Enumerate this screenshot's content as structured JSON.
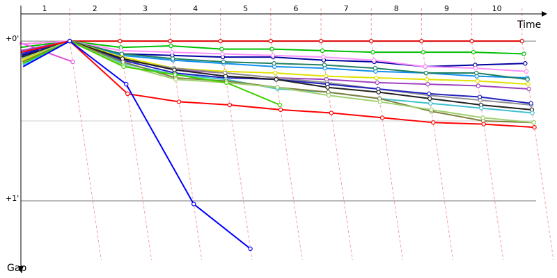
{
  "chart_data": {
    "type": "line",
    "x_label": "Time",
    "y_label": "Gap",
    "x": [
      0,
      1,
      2,
      3,
      4,
      5,
      6,
      7,
      8,
      9,
      10
    ],
    "xlim": [
      0,
      10.35
    ],
    "xticks": [
      1,
      2,
      3,
      4,
      5,
      6,
      7,
      8,
      9,
      10
    ],
    "ylim": [
      -0.17,
      1.37
    ],
    "yticks": [
      {
        "value": 0,
        "label": "+0'"
      },
      {
        "value": 1,
        "label": "+1'"
      }
    ],
    "yminor": [
      0.5
    ],
    "series": [
      {
        "color": "#e00000",
        "values": [
          0.02,
          0,
          0,
          0,
          0,
          0,
          0,
          0,
          0,
          0,
          0
        ]
      },
      {
        "color": "#00c000",
        "values": [
          0.04,
          0,
          0.04,
          0.03,
          0.05,
          0.05,
          0.06,
          0.07,
          0.07,
          0.07,
          0.08
        ]
      },
      {
        "color": "#0000a0",
        "values": [
          0.09,
          0,
          0.08,
          0.09,
          0.1,
          0.1,
          0.12,
          0.13,
          0.16,
          0.15,
          0.14
        ]
      },
      {
        "color": "#e050e0",
        "values": [
          0.01,
          0.13,
          null,
          null,
          null,
          null,
          null,
          null,
          null,
          null,
          null
        ]
      },
      {
        "color": "#ff90ff",
        "values": [
          0.02,
          0,
          0.06,
          0.07,
          0.08,
          0.09,
          0.1,
          0.12,
          0.16,
          0.17,
          0.19
        ]
      },
      {
        "color": "#1090f0",
        "values": [
          0.11,
          0,
          0.09,
          0.12,
          0.14,
          0.16,
          0.17,
          0.19,
          0.2,
          0.22,
          0.23
        ]
      },
      {
        "color": "#208060",
        "values": [
          0.1,
          0,
          0.08,
          0.11,
          0.13,
          0.14,
          0.15,
          0.17,
          0.2,
          0.2,
          0.24
        ]
      },
      {
        "color": "#e0e000",
        "values": [
          0.12,
          0,
          0.1,
          0.17,
          0.19,
          0.2,
          0.22,
          0.23,
          0.24,
          0.25,
          0.27
        ]
      },
      {
        "color": "#a040c0",
        "values": [
          0.06,
          0,
          0.11,
          0.18,
          0.2,
          0.23,
          0.24,
          0.26,
          0.27,
          0.28,
          0.3
        ]
      },
      {
        "color": "#909090",
        "values": [
          0.07,
          0,
          0.12,
          0.17,
          0.2,
          0.23,
          0.26,
          0.3,
          0.34,
          0.37,
          0.4
        ]
      },
      {
        "color": "#2020c0",
        "values": [
          0.08,
          0,
          0.12,
          0.2,
          0.23,
          0.24,
          0.27,
          0.3,
          0.33,
          0.35,
          0.39
        ]
      },
      {
        "color": "#202020",
        "values": [
          0.1,
          0,
          0.11,
          0.18,
          0.22,
          0.24,
          0.29,
          0.32,
          0.36,
          0.4,
          0.43
        ]
      },
      {
        "color": "#40c0d0",
        "values": [
          0.15,
          0,
          0.14,
          0.21,
          0.24,
          0.3,
          0.32,
          0.36,
          0.39,
          0.42,
          0.45
        ]
      },
      {
        "color": "#808040",
        "values": [
          0.13,
          0,
          0.13,
          0.23,
          0.25,
          0.29,
          0.32,
          0.36,
          0.44,
          0.5,
          0.51
        ]
      },
      {
        "color": "#a0d070",
        "values": [
          0.11,
          0,
          0.15,
          0.24,
          0.26,
          0.29,
          0.34,
          0.38,
          0.43,
          0.48,
          0.51
        ]
      },
      {
        "color": "#40d000",
        "values": [
          0.14,
          0,
          0.16,
          0.21,
          0.26,
          0.4,
          null,
          null,
          null,
          null,
          null
        ]
      },
      {
        "color": "#ff0000",
        "values": [
          0.07,
          0,
          0.33,
          0.38,
          0.4,
          0.43,
          0.45,
          0.48,
          0.51,
          0.52,
          0.54
        ]
      },
      {
        "color": "#0000ff",
        "values": [
          0.16,
          0,
          0.27,
          1.02,
          1.3,
          null,
          null,
          null,
          null,
          null,
          null
        ]
      }
    ]
  }
}
